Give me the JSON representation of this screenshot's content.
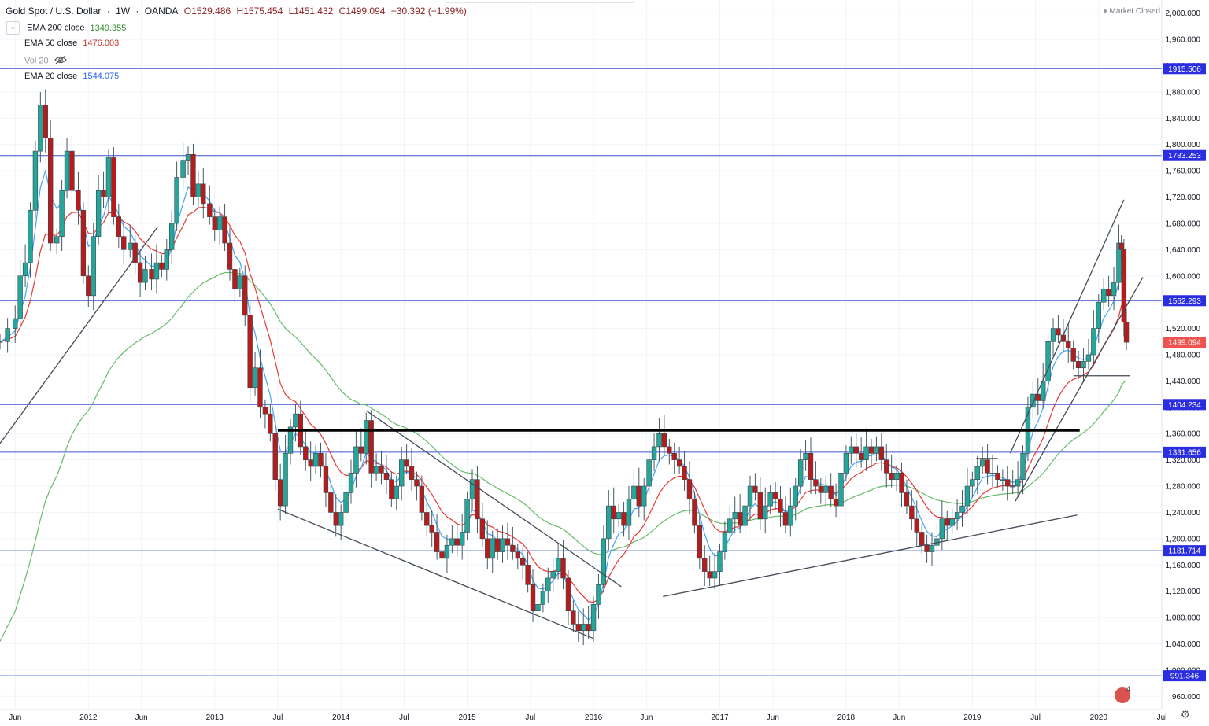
{
  "header": {
    "symbol": "Gold Spot / U.S. Dollar",
    "interval": "1W",
    "exchange": "OANDA",
    "open": "O1529.486",
    "high": "H1575.454",
    "low": "L1451.432",
    "close": "C1499.094",
    "change": "−30.392 (−1.99%)"
  },
  "indicators": [
    {
      "label": "EMA 200 close",
      "value": "1349.355",
      "color": "#2e8b2e"
    },
    {
      "label": "EMA 50 close",
      "value": "1476.003",
      "color": "#c0392b"
    },
    {
      "label": "Vol 20",
      "value": "",
      "color": "#9598a1"
    },
    {
      "label": "EMA 20 close",
      "value": "1544.075",
      "color": "#2962ff"
    }
  ],
  "market_status": "Market Closed",
  "chart_data": {
    "type": "candlestick",
    "title": "Gold Spot / U.S. Dollar",
    "ylim": [
      940,
      2020
    ],
    "y_ticks": [
      960,
      1000,
      1040,
      1080,
      1120,
      1160,
      1200,
      1240,
      1280,
      1320,
      1360,
      1400,
      1440,
      1480,
      1520,
      1560,
      1600,
      1640,
      1680,
      1720,
      1760,
      1800,
      1840,
      1880,
      1920,
      1960,
      2000
    ],
    "x_ticks": [
      {
        "label": "Jun",
        "t": 2011.42
      },
      {
        "label": "2012",
        "t": 2012.0
      },
      {
        "label": "Jun",
        "t": 2012.42
      },
      {
        "label": "2013",
        "t": 2013.0
      },
      {
        "label": "Jul",
        "t": 2013.5
      },
      {
        "label": "2014",
        "t": 2014.0
      },
      {
        "label": "Jul",
        "t": 2014.5
      },
      {
        "label": "2015",
        "t": 2015.0
      },
      {
        "label": "Jul",
        "t": 2015.5
      },
      {
        "label": "2016",
        "t": 2016.0
      },
      {
        "label": "Jun",
        "t": 2016.42
      },
      {
        "label": "2017",
        "t": 2017.0
      },
      {
        "label": "Jun",
        "t": 2017.42
      },
      {
        "label": "2018",
        "t": 2018.0
      },
      {
        "label": "Jun",
        "t": 2018.42
      },
      {
        "label": "2019",
        "t": 2019.0
      },
      {
        "label": "Jul",
        "t": 2019.5
      },
      {
        "label": "2020",
        "t": 2020.0
      },
      {
        "label": "Jul",
        "t": 2020.5
      }
    ],
    "x_range": [
      2011.3,
      2020.5
    ],
    "last_price": {
      "value": 1499.094,
      "label": "1499.094",
      "color": "#ef5350"
    },
    "horizontal_levels": [
      {
        "value": 1915.506,
        "label": "1915.506"
      },
      {
        "value": 1783.253,
        "label": "1783.253"
      },
      {
        "value": 1562.293,
        "label": "1562.293"
      },
      {
        "value": 1404.234,
        "label": "1404.234"
      },
      {
        "value": 1331.656,
        "label": "1331.656"
      },
      {
        "value": 1181.714,
        "label": "1181.714"
      },
      {
        "value": 991.346,
        "label": "991.346"
      }
    ],
    "neckline": {
      "t1": 2013.5,
      "v1": 1365,
      "t2": 2019.85,
      "v2": 1365
    },
    "trendlines": [
      {
        "t1": 2011.3,
        "v1": 1345,
        "t2": 2012.55,
        "v2": 1675
      },
      {
        "t1": 2013.5,
        "v1": 1245,
        "t2": 2016.0,
        "v2": 1048
      },
      {
        "t1": 2014.2,
        "v1": 1395,
        "t2": 2016.22,
        "v2": 1127
      },
      {
        "t1": 2016.55,
        "v1": 1112,
        "t2": 2019.83,
        "v2": 1236
      },
      {
        "t1": 2019.3,
        "v1": 1330,
        "t2": 2020.2,
        "v2": 1716
      },
      {
        "t1": 2019.34,
        "v1": 1257,
        "t2": 2020.35,
        "v2": 1598
      },
      {
        "t1": 2019.03,
        "v1": 1322,
        "t2": 2019.2,
        "v2": 1322
      },
      {
        "t1": 2019.8,
        "v1": 1448,
        "t2": 2020.25,
        "v2": 1448
      }
    ],
    "closes": [
      [
        2011.3,
        1500
      ],
      [
        2011.36,
        1520
      ],
      [
        2011.42,
        1535
      ],
      [
        2011.46,
        1600
      ],
      [
        2011.5,
        1620
      ],
      [
        2011.54,
        1700
      ],
      [
        2011.58,
        1790
      ],
      [
        2011.62,
        1860
      ],
      [
        2011.66,
        1810
      ],
      [
        2011.7,
        1650
      ],
      [
        2011.75,
        1660
      ],
      [
        2011.79,
        1730
      ],
      [
        2011.83,
        1790
      ],
      [
        2011.87,
        1730
      ],
      [
        2011.92,
        1700
      ],
      [
        2011.96,
        1600
      ],
      [
        2012.0,
        1570
      ],
      [
        2012.04,
        1660
      ],
      [
        2012.08,
        1730
      ],
      [
        2012.12,
        1720
      ],
      [
        2012.16,
        1780
      ],
      [
        2012.2,
        1690
      ],
      [
        2012.24,
        1660
      ],
      [
        2012.28,
        1640
      ],
      [
        2012.33,
        1650
      ],
      [
        2012.37,
        1620
      ],
      [
        2012.41,
        1590
      ],
      [
        2012.45,
        1610
      ],
      [
        2012.5,
        1595
      ],
      [
        2012.54,
        1620
      ],
      [
        2012.58,
        1610
      ],
      [
        2012.62,
        1640
      ],
      [
        2012.66,
        1680
      ],
      [
        2012.7,
        1750
      ],
      [
        2012.75,
        1775
      ],
      [
        2012.79,
        1785
      ],
      [
        2012.83,
        1720
      ],
      [
        2012.87,
        1740
      ],
      [
        2012.91,
        1710
      ],
      [
        2012.96,
        1690
      ],
      [
        2013.0,
        1670
      ],
      [
        2013.04,
        1690
      ],
      [
        2013.08,
        1650
      ],
      [
        2013.12,
        1610
      ],
      [
        2013.16,
        1580
      ],
      [
        2013.2,
        1600
      ],
      [
        2013.24,
        1540
      ],
      [
        2013.28,
        1430
      ],
      [
        2013.32,
        1460
      ],
      [
        2013.36,
        1400
      ],
      [
        2013.4,
        1390
      ],
      [
        2013.44,
        1360
      ],
      [
        2013.48,
        1290
      ],
      [
        2013.52,
        1250
      ],
      [
        2013.56,
        1330
      ],
      [
        2013.6,
        1370
      ],
      [
        2013.64,
        1390
      ],
      [
        2013.68,
        1340
      ],
      [
        2013.72,
        1320
      ],
      [
        2013.76,
        1310
      ],
      [
        2013.8,
        1330
      ],
      [
        2013.84,
        1310
      ],
      [
        2013.88,
        1270
      ],
      [
        2013.92,
        1240
      ],
      [
        2013.96,
        1220
      ],
      [
        2014.0,
        1240
      ],
      [
        2014.04,
        1270
      ],
      [
        2014.08,
        1300
      ],
      [
        2014.12,
        1340
      ],
      [
        2014.16,
        1330
      ],
      [
        2014.2,
        1380
      ],
      [
        2014.24,
        1300
      ],
      [
        2014.28,
        1310
      ],
      [
        2014.32,
        1300
      ],
      [
        2014.36,
        1290
      ],
      [
        2014.4,
        1260
      ],
      [
        2014.44,
        1280
      ],
      [
        2014.48,
        1320
      ],
      [
        2014.52,
        1310
      ],
      [
        2014.56,
        1290
      ],
      [
        2014.6,
        1280
      ],
      [
        2014.64,
        1240
      ],
      [
        2014.68,
        1220
      ],
      [
        2014.72,
        1210
      ],
      [
        2014.76,
        1180
      ],
      [
        2014.8,
        1170
      ],
      [
        2014.84,
        1190
      ],
      [
        2014.88,
        1200
      ],
      [
        2014.92,
        1190
      ],
      [
        2014.96,
        1210
      ],
      [
        2015.0,
        1260
      ],
      [
        2015.04,
        1290
      ],
      [
        2015.08,
        1230
      ],
      [
        2015.12,
        1200
      ],
      [
        2015.16,
        1170
      ],
      [
        2015.2,
        1200
      ],
      [
        2015.24,
        1180
      ],
      [
        2015.28,
        1200
      ],
      [
        2015.32,
        1190
      ],
      [
        2015.36,
        1180
      ],
      [
        2015.4,
        1170
      ],
      [
        2015.44,
        1160
      ],
      [
        2015.48,
        1130
      ],
      [
        2015.52,
        1090
      ],
      [
        2015.56,
        1100
      ],
      [
        2015.6,
        1120
      ],
      [
        2015.64,
        1140
      ],
      [
        2015.68,
        1150
      ],
      [
        2015.72,
        1170
      ],
      [
        2015.76,
        1140
      ],
      [
        2015.8,
        1090
      ],
      [
        2015.84,
        1070
      ],
      [
        2015.88,
        1060
      ],
      [
        2015.92,
        1070
      ],
      [
        2015.96,
        1060
      ],
      [
        2016.0,
        1100
      ],
      [
        2016.04,
        1130
      ],
      [
        2016.08,
        1200
      ],
      [
        2016.12,
        1250
      ],
      [
        2016.16,
        1230
      ],
      [
        2016.2,
        1240
      ],
      [
        2016.24,
        1220
      ],
      [
        2016.28,
        1260
      ],
      [
        2016.32,
        1280
      ],
      [
        2016.36,
        1250
      ],
      [
        2016.4,
        1280
      ],
      [
        2016.44,
        1320
      ],
      [
        2016.48,
        1340
      ],
      [
        2016.52,
        1360
      ],
      [
        2016.56,
        1340
      ],
      [
        2016.6,
        1330
      ],
      [
        2016.64,
        1320
      ],
      [
        2016.68,
        1310
      ],
      [
        2016.72,
        1290
      ],
      [
        2016.76,
        1260
      ],
      [
        2016.8,
        1220
      ],
      [
        2016.84,
        1170
      ],
      [
        2016.88,
        1150
      ],
      [
        2016.92,
        1140
      ],
      [
        2016.96,
        1150
      ],
      [
        2017.0,
        1180
      ],
      [
        2017.04,
        1210
      ],
      [
        2017.08,
        1230
      ],
      [
        2017.12,
        1240
      ],
      [
        2017.16,
        1220
      ],
      [
        2017.2,
        1250
      ],
      [
        2017.24,
        1280
      ],
      [
        2017.28,
        1270
      ],
      [
        2017.32,
        1230
      ],
      [
        2017.36,
        1250
      ],
      [
        2017.4,
        1270
      ],
      [
        2017.44,
        1260
      ],
      [
        2017.48,
        1240
      ],
      [
        2017.52,
        1220
      ],
      [
        2017.56,
        1250
      ],
      [
        2017.6,
        1280
      ],
      [
        2017.64,
        1320
      ],
      [
        2017.68,
        1330
      ],
      [
        2017.72,
        1290
      ],
      [
        2017.76,
        1280
      ],
      [
        2017.8,
        1270
      ],
      [
        2017.84,
        1280
      ],
      [
        2017.88,
        1260
      ],
      [
        2017.92,
        1250
      ],
      [
        2017.96,
        1300
      ],
      [
        2018.0,
        1330
      ],
      [
        2018.04,
        1340
      ],
      [
        2018.08,
        1330
      ],
      [
        2018.12,
        1320
      ],
      [
        2018.16,
        1340
      ],
      [
        2018.2,
        1330
      ],
      [
        2018.24,
        1340
      ],
      [
        2018.28,
        1320
      ],
      [
        2018.32,
        1300
      ],
      [
        2018.36,
        1290
      ],
      [
        2018.4,
        1300
      ],
      [
        2018.44,
        1270
      ],
      [
        2018.48,
        1250
      ],
      [
        2018.52,
        1230
      ],
      [
        2018.56,
        1210
      ],
      [
        2018.6,
        1190
      ],
      [
        2018.64,
        1180
      ],
      [
        2018.68,
        1190
      ],
      [
        2018.72,
        1200
      ],
      [
        2018.76,
        1230
      ],
      [
        2018.8,
        1220
      ],
      [
        2018.84,
        1230
      ],
      [
        2018.88,
        1240
      ],
      [
        2018.92,
        1250
      ],
      [
        2018.96,
        1280
      ],
      [
        2019.0,
        1290
      ],
      [
        2019.04,
        1310
      ],
      [
        2019.08,
        1320
      ],
      [
        2019.12,
        1300
      ],
      [
        2019.16,
        1300
      ],
      [
        2019.2,
        1290
      ],
      [
        2019.24,
        1290
      ],
      [
        2019.28,
        1280
      ],
      [
        2019.32,
        1280
      ],
      [
        2019.36,
        1290
      ],
      [
        2019.4,
        1330
      ],
      [
        2019.44,
        1400
      ],
      [
        2019.48,
        1420
      ],
      [
        2019.52,
        1410
      ],
      [
        2019.56,
        1440
      ],
      [
        2019.6,
        1500
      ],
      [
        2019.64,
        1520
      ],
      [
        2019.68,
        1510
      ],
      [
        2019.72,
        1500
      ],
      [
        2019.76,
        1490
      ],
      [
        2019.8,
        1470
      ],
      [
        2019.84,
        1460
      ],
      [
        2019.88,
        1470
      ],
      [
        2019.92,
        1480
      ],
      [
        2019.96,
        1520
      ],
      [
        2020.0,
        1560
      ],
      [
        2020.04,
        1580
      ],
      [
        2020.08,
        1570
      ],
      [
        2020.12,
        1590
      ],
      [
        2020.16,
        1650
      ],
      [
        2020.18,
        1640
      ],
      [
        2020.2,
        1530
      ],
      [
        2020.22,
        1499
      ]
    ]
  }
}
